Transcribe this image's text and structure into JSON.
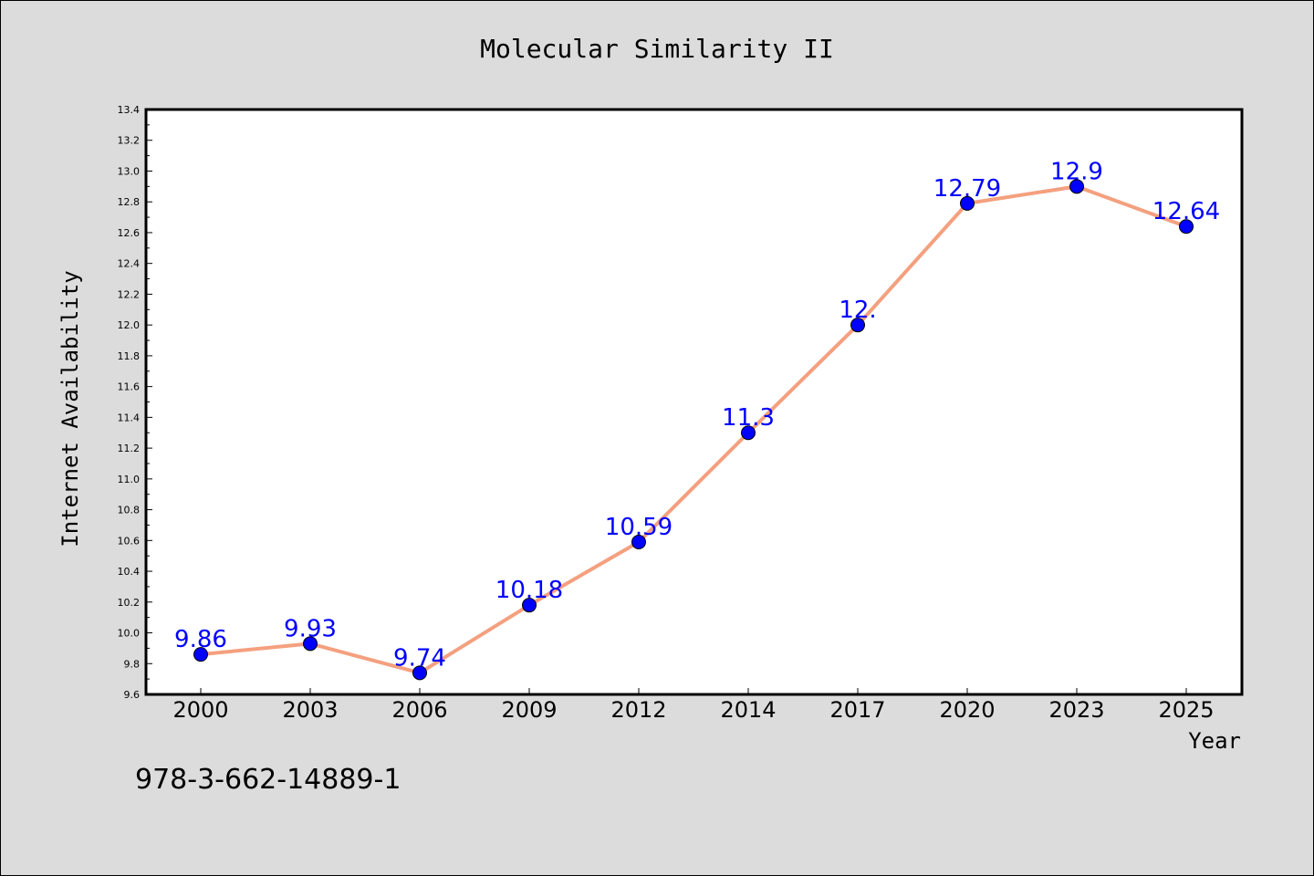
{
  "chart_data": {
    "type": "line",
    "title": "Molecular Similarity II",
    "xlabel": "Year",
    "ylabel": "Internet Availability",
    "categories": [
      "2000",
      "2003",
      "2006",
      "2009",
      "2012",
      "2014",
      "2017",
      "2020",
      "2023",
      "2025"
    ],
    "series": [
      {
        "values": [
          9.86,
          9.93,
          9.74,
          10.18,
          10.59,
          11.3,
          12.0,
          12.79,
          12.9,
          12.64
        ],
        "data_labels": [
          "9.86",
          "9.93",
          "9.74",
          "10.18",
          "10.59",
          "11.3",
          "12.",
          "12.79",
          "12.9",
          "12.64"
        ],
        "line_color": "#f4a07f",
        "marker_color": "#0000ff",
        "label_color": "#0000ff"
      }
    ],
    "ylim": [
      9.6,
      13.4
    ],
    "yticks": [
      "9.6",
      "9.8",
      "10.0",
      "10.2",
      "10.4",
      "10.6",
      "10.8",
      "11.0",
      "11.2",
      "11.4",
      "11.6",
      "11.8",
      "12.0",
      "12.2",
      "12.4",
      "12.6",
      "12.8",
      "13.0",
      "13.2",
      "13.4"
    ],
    "grid": false,
    "legend": "none"
  },
  "footer_text": "978-3-662-14889-1",
  "colors": {
    "background": "#dcdcdc",
    "plot_background": "#ffffff",
    "axis": "#000000"
  }
}
